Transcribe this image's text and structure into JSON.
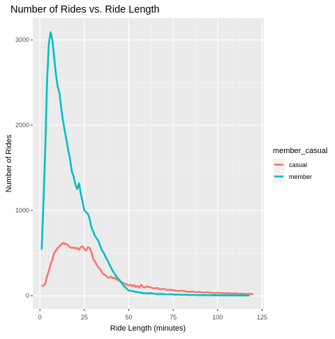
{
  "chart_data": {
    "type": "line",
    "title": "Number of Rides vs. Ride Length",
    "xlabel": "Ride Length (minutes)",
    "ylabel": "Number of Rides",
    "xlim": [
      -4,
      126
    ],
    "ylim": [
      -155,
      3255
    ],
    "x_ticks": [
      0,
      25,
      50,
      75,
      100,
      125
    ],
    "x_tick_labels": [
      "0",
      "25",
      "50",
      "75",
      "100",
      "125"
    ],
    "y_ticks": [
      0,
      1000,
      2000,
      3000
    ],
    "y_tick_labels": [
      "0",
      "1000",
      "2000",
      "3000"
    ],
    "grid": true,
    "legend": {
      "title": "member_casual",
      "placement": "right"
    },
    "series": [
      {
        "name": "casual",
        "color": "#F8766D",
        "points": [
          [
            1,
            110
          ],
          [
            2,
            120
          ],
          [
            3,
            140
          ],
          [
            4,
            230
          ],
          [
            5,
            290
          ],
          [
            6,
            370
          ],
          [
            7,
            420
          ],
          [
            8,
            500
          ],
          [
            9,
            530
          ],
          [
            10,
            560
          ],
          [
            11,
            580
          ],
          [
            12,
            600
          ],
          [
            13,
            620
          ],
          [
            14,
            605
          ],
          [
            15,
            610
          ],
          [
            16,
            585
          ],
          [
            17,
            570
          ],
          [
            18,
            560
          ],
          [
            19,
            565
          ],
          [
            20,
            555
          ],
          [
            21,
            560
          ],
          [
            22,
            540
          ],
          [
            23,
            570
          ],
          [
            24,
            580
          ],
          [
            25,
            545
          ],
          [
            26,
            530
          ],
          [
            27,
            570
          ],
          [
            28,
            560
          ],
          [
            29,
            510
          ],
          [
            30,
            430
          ],
          [
            31,
            400
          ],
          [
            32,
            360
          ],
          [
            33,
            330
          ],
          [
            34,
            310
          ],
          [
            35,
            270
          ],
          [
            36,
            250
          ],
          [
            37,
            240
          ],
          [
            38,
            215
          ],
          [
            39,
            210
          ],
          [
            40,
            225
          ],
          [
            41,
            205
          ],
          [
            42,
            215
          ],
          [
            43,
            190
          ],
          [
            44,
            185
          ],
          [
            45,
            170
          ],
          [
            46,
            160
          ],
          [
            47,
            145
          ],
          [
            48,
            140
          ],
          [
            49,
            130
          ],
          [
            50,
            120
          ],
          [
            51,
            130
          ],
          [
            52,
            110
          ],
          [
            53,
            125
          ],
          [
            54,
            100
          ],
          [
            55,
            115
          ],
          [
            56,
            95
          ],
          [
            57,
            130
          ],
          [
            58,
            105
          ],
          [
            59,
            95
          ],
          [
            60,
            110
          ],
          [
            62,
            100
          ],
          [
            64,
            85
          ],
          [
            66,
            90
          ],
          [
            68,
            75
          ],
          [
            70,
            80
          ],
          [
            72,
            65
          ],
          [
            74,
            70
          ],
          [
            76,
            60
          ],
          [
            78,
            55
          ],
          [
            80,
            60
          ],
          [
            82,
            50
          ],
          [
            84,
            45
          ],
          [
            86,
            50
          ],
          [
            88,
            40
          ],
          [
            90,
            45
          ],
          [
            92,
            35
          ],
          [
            94,
            40
          ],
          [
            96,
            35
          ],
          [
            98,
            30
          ],
          [
            100,
            35
          ],
          [
            102,
            30
          ],
          [
            104,
            28
          ],
          [
            106,
            30
          ],
          [
            108,
            25
          ],
          [
            110,
            28
          ],
          [
            112,
            22
          ],
          [
            114,
            25
          ],
          [
            116,
            20
          ],
          [
            118,
            22
          ],
          [
            120,
            18
          ]
        ]
      },
      {
        "name": "member",
        "color": "#00BFC4",
        "points": [
          [
            1,
            540
          ],
          [
            2,
            1100
          ],
          [
            3,
            1700
          ],
          [
            4,
            2500
          ],
          [
            5,
            2950
          ],
          [
            6,
            3090
          ],
          [
            7,
            3000
          ],
          [
            8,
            2800
          ],
          [
            9,
            2600
          ],
          [
            10,
            2450
          ],
          [
            11,
            2380
          ],
          [
            12,
            2200
          ],
          [
            13,
            2050
          ],
          [
            14,
            1930
          ],
          [
            15,
            1820
          ],
          [
            16,
            1700
          ],
          [
            17,
            1600
          ],
          [
            18,
            1450
          ],
          [
            19,
            1400
          ],
          [
            20,
            1300
          ],
          [
            21,
            1250
          ],
          [
            22,
            1320
          ],
          [
            23,
            1200
          ],
          [
            24,
            1100
          ],
          [
            25,
            1000
          ],
          [
            26,
            980
          ],
          [
            27,
            960
          ],
          [
            28,
            900
          ],
          [
            29,
            800
          ],
          [
            30,
            750
          ],
          [
            31,
            700
          ],
          [
            32,
            670
          ],
          [
            33,
            640
          ],
          [
            34,
            580
          ],
          [
            35,
            530
          ],
          [
            36,
            500
          ],
          [
            37,
            450
          ],
          [
            38,
            420
          ],
          [
            39,
            370
          ],
          [
            40,
            330
          ],
          [
            41,
            290
          ],
          [
            42,
            260
          ],
          [
            43,
            230
          ],
          [
            44,
            200
          ],
          [
            45,
            180
          ],
          [
            46,
            150
          ],
          [
            47,
            120
          ],
          [
            48,
            100
          ],
          [
            49,
            80
          ],
          [
            50,
            60
          ],
          [
            52,
            55
          ],
          [
            54,
            45
          ],
          [
            56,
            40
          ],
          [
            58,
            30
          ],
          [
            60,
            28
          ],
          [
            62,
            30
          ],
          [
            64,
            25
          ],
          [
            66,
            20
          ],
          [
            68,
            22
          ],
          [
            70,
            18
          ],
          [
            72,
            15
          ],
          [
            74,
            18
          ],
          [
            76,
            12
          ],
          [
            78,
            14
          ],
          [
            80,
            10
          ],
          [
            82,
            12
          ],
          [
            84,
            8
          ],
          [
            86,
            10
          ],
          [
            88,
            7
          ],
          [
            90,
            8
          ],
          [
            92,
            6
          ],
          [
            94,
            7
          ],
          [
            96,
            5
          ],
          [
            98,
            6
          ],
          [
            100,
            5
          ],
          [
            102,
            5
          ],
          [
            104,
            4
          ],
          [
            106,
            5
          ],
          [
            108,
            4
          ],
          [
            110,
            4
          ],
          [
            112,
            3
          ],
          [
            114,
            4
          ],
          [
            116,
            3
          ],
          [
            118,
            3
          ]
        ]
      }
    ]
  }
}
